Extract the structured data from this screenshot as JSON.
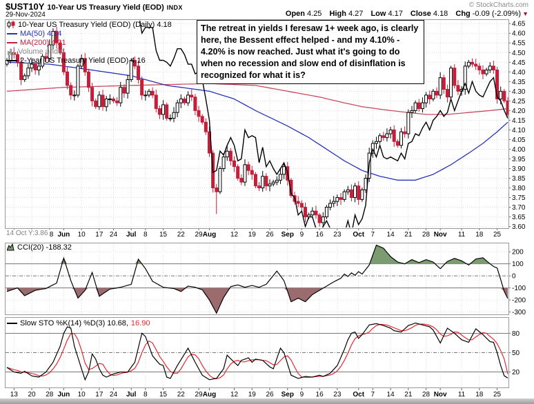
{
  "header": {
    "symbol": "$UST10Y",
    "title": "10-Year US Treasury Yield (EOD)",
    "exchange": "INDX",
    "date": "29-Nov-2024",
    "copyright": "© StockCharts.com",
    "quote": {
      "open_label": "Open",
      "open": "4.25",
      "high_label": "High",
      "high": "4.27",
      "low_label": "Low",
      "low": "4.17",
      "close_label": "Close",
      "close": "4.18",
      "chg_label": "Chg",
      "chg": "-0.09 (-2.09%)",
      "arrow": "▼"
    }
  },
  "legend_main": {
    "price": "10-Year US Treasury Yield (EOD) (Daily) 4.18",
    "ma50": "MA(50) 4.14",
    "ma200": "MA(200) 4.21",
    "volume": "Volume undef",
    "overlay_2y": "2-Year US Treasury Yield (EOD) 4.16"
  },
  "legend_cci": "CCI(20) -188.32",
  "legend_sto": {
    "k": "Slow STO %K(14) %D(3) 10.68,",
    "d": "16.90"
  },
  "inspector": "14 Oct Y:3.86",
  "annotation": "The retreat in yields I feresaw 1+ week ago, is clearly here, the Bessent effect helped - and my 4.10% - 4.20% is now reached. Just what it's going to do when no recession and slow end of disinflation is recognized for what it is?",
  "colors": {
    "candle_down": "#c41e3a",
    "candle_up_fill": "#ffffff",
    "candle_up_stroke": "#000000",
    "ma50": "#2533b8",
    "ma200": "#c84a5e",
    "line_2y": "#000000",
    "cci_fill_pos": "#7d9b70",
    "cci_fill_neg": "#9b6b6e",
    "cci_line": "#000000",
    "sto_k": "#000000",
    "sto_d": "#e8252f",
    "grid": "#dcdcdc",
    "ref_line": "#777777",
    "panel_border": "#999999",
    "axis_text": "#000000",
    "chg_arrow": "#9b1c31"
  },
  "chart_data": [
    {
      "type": "candlestick",
      "title": "10-Year US Treasury Yield (EOD) (Daily)",
      "last": 4.18,
      "ylim": [
        3.6,
        4.65
      ],
      "ytick_step": 0.05,
      "yticks": [
        "4.65",
        "4.60",
        "4.55",
        "4.50",
        "4.45",
        "4.40",
        "4.35",
        "4.30",
        "4.25",
        "4.20",
        "4.15",
        "4.10",
        "4.05",
        "4.00",
        "3.95",
        "3.90",
        "3.85",
        "3.80",
        "3.75",
        "3.70",
        "3.65",
        "3.60"
      ],
      "xticks": [
        [
          2,
          "13"
        ],
        [
          7,
          "20"
        ],
        [
          12,
          "28"
        ],
        [
          16,
          "Jun"
        ],
        [
          21,
          "10"
        ],
        [
          26,
          "17"
        ],
        [
          30,
          "24"
        ],
        [
          35,
          "Jul"
        ],
        [
          39,
          "8"
        ],
        [
          44,
          "15"
        ],
        [
          49,
          "22"
        ],
        [
          54,
          "29"
        ],
        [
          57,
          "Aug"
        ],
        [
          64,
          "12"
        ],
        [
          69,
          "19"
        ],
        [
          74,
          "26"
        ],
        [
          79,
          "Sep"
        ],
        [
          83,
          "9"
        ],
        [
          88,
          "16"
        ],
        [
          93,
          "23"
        ],
        [
          99,
          "Oct"
        ],
        [
          103,
          "7"
        ],
        [
          108,
          "14"
        ],
        [
          113,
          "21"
        ],
        [
          118,
          "28"
        ],
        [
          122,
          "Nov"
        ],
        [
          128,
          "11"
        ],
        [
          133,
          "18"
        ],
        [
          138,
          "25"
        ]
      ],
      "closes": [
        4.46,
        4.5,
        4.49,
        4.45,
        4.36,
        4.38,
        4.42,
        4.44,
        4.41,
        4.43,
        4.48,
        4.47,
        4.54,
        4.61,
        4.55,
        4.5,
        4.4,
        4.33,
        4.28,
        4.28,
        4.43,
        4.47,
        4.4,
        4.32,
        4.25,
        4.22,
        4.28,
        4.22,
        4.26,
        4.26,
        4.25,
        4.24,
        4.32,
        4.29,
        4.36,
        4.46,
        4.43,
        4.36,
        4.28,
        4.28,
        4.3,
        4.28,
        4.21,
        4.18,
        4.23,
        4.16,
        4.16,
        4.19,
        4.24,
        4.26,
        4.24,
        4.28,
        4.27,
        4.2,
        4.17,
        4.14,
        4.09,
        3.98,
        3.8,
        3.78,
        3.9,
        3.96,
        3.99,
        3.94,
        3.91,
        3.85,
        3.83,
        3.92,
        3.89,
        3.87,
        3.81,
        3.8,
        3.86,
        3.81,
        3.82,
        3.83,
        3.84,
        3.87,
        3.91,
        3.84,
        3.76,
        3.73,
        3.72,
        3.7,
        3.65,
        3.66,
        3.68,
        3.66,
        3.62,
        3.65,
        3.7,
        3.72,
        3.73,
        3.75,
        3.74,
        3.78,
        3.79,
        3.75,
        3.81,
        3.74,
        3.79,
        3.85,
        3.98,
        4.03,
        4.04,
        4.07,
        4.06,
        4.08,
        4.1,
        4.04,
        4.02,
        4.09,
        4.08,
        4.19,
        4.2,
        4.24,
        4.21,
        4.24,
        4.28,
        4.26,
        4.3,
        4.28,
        4.37,
        4.31,
        4.27,
        4.42,
        4.33,
        4.3,
        4.31,
        4.43,
        4.45,
        4.44,
        4.43,
        4.41,
        4.39,
        4.41,
        4.43,
        4.41,
        4.26,
        4.3,
        4.25,
        4.18
      ],
      "wick_overrides": {
        "59": [
          3.82,
          3.665
        ],
        "88": [
          3.67,
          3.6
        ],
        "141": [
          4.27,
          4.17
        ]
      },
      "overlays": [
        {
          "name": "MA(50)",
          "last": 4.14,
          "keypoints": [
            [
              0,
              4.45
            ],
            [
              12,
              4.44
            ],
            [
              20,
              4.42
            ],
            [
              35,
              4.38
            ],
            [
              45,
              4.33
            ],
            [
              57,
              4.3
            ],
            [
              64,
              4.26
            ],
            [
              70,
              4.2
            ],
            [
              79,
              4.12
            ],
            [
              85,
              4.06
            ],
            [
              90,
              4.0
            ],
            [
              95,
              3.94
            ],
            [
              100,
              3.89
            ],
            [
              105,
              3.86
            ],
            [
              110,
              3.84
            ],
            [
              115,
              3.84
            ],
            [
              120,
              3.87
            ],
            [
              125,
              3.92
            ],
            [
              130,
              3.98
            ],
            [
              134,
              4.03
            ],
            [
              138,
              4.09
            ],
            [
              141,
              4.14
            ]
          ]
        },
        {
          "name": "MA(200)",
          "last": 4.21,
          "keypoints": [
            [
              0,
              4.3
            ],
            [
              16,
              4.32
            ],
            [
              35,
              4.33
            ],
            [
              57,
              4.34
            ],
            [
              70,
              4.33
            ],
            [
              79,
              4.3
            ],
            [
              88,
              4.27
            ],
            [
              95,
              4.24
            ],
            [
              100,
              4.22
            ],
            [
              108,
              4.2
            ],
            [
              113,
              4.19
            ],
            [
              118,
              4.18
            ],
            [
              124,
              4.18
            ],
            [
              130,
              4.19
            ],
            [
              136,
              4.2
            ],
            [
              141,
              4.21
            ]
          ]
        },
        {
          "name": "2-Year US Treasury Yield (EOD)",
          "last": 4.16,
          "values": [
            4.81,
            4.87,
            4.86,
            4.82,
            4.73,
            4.79,
            4.83,
            4.84,
            4.83,
            4.87,
            4.93,
            4.95,
            4.94,
            4.98,
            4.93,
            4.88,
            4.82,
            4.78,
            4.73,
            4.73,
            4.89,
            4.88,
            4.84,
            4.76,
            4.7,
            4.71,
            4.77,
            4.72,
            4.74,
            4.74,
            4.74,
            4.74,
            4.75,
            4.72,
            4.76,
            4.78,
            4.74,
            4.71,
            4.6,
            4.63,
            4.63,
            4.63,
            4.51,
            4.46,
            4.46,
            4.45,
            4.43,
            4.47,
            4.52,
            4.52,
            4.49,
            4.44,
            4.44,
            4.39,
            4.4,
            4.36,
            4.26,
            4.15,
            3.88,
            3.89,
            3.99,
            3.97,
            4.02,
            4.06,
            4.02,
            3.94,
            3.95,
            4.1,
            4.06,
            4.07,
            4.06,
            3.93,
            4.01,
            3.91,
            3.94,
            3.9,
            3.87,
            3.9,
            3.93,
            3.88,
            3.77,
            3.75,
            3.66,
            3.68,
            3.6,
            3.65,
            3.65,
            3.59,
            3.56,
            3.6,
            3.63,
            3.59,
            3.57,
            3.58,
            3.54,
            3.56,
            3.63,
            3.56,
            3.66,
            3.61,
            3.64,
            3.71,
            3.93,
            4.0,
            3.96,
            4.02,
            3.96,
            3.95,
            3.96,
            3.95,
            3.94,
            3.98,
            3.95,
            4.03,
            4.04,
            4.08,
            4.07,
            4.11,
            4.14,
            4.1,
            4.15,
            4.17,
            4.2,
            4.17,
            4.19,
            4.26,
            4.2,
            4.25,
            4.3,
            4.34,
            4.29,
            4.35,
            4.3,
            4.28,
            4.27,
            4.31,
            4.35,
            4.37,
            4.27,
            4.25,
            4.2,
            4.16
          ]
        }
      ]
    },
    {
      "type": "area",
      "title": "CCI(20)",
      "last": -188.32,
      "ylim": [
        -320,
        270
      ],
      "yticks": [
        "200",
        "100",
        "0",
        "-100",
        "-200",
        "-300"
      ],
      "ref_lines": {
        "upper": 100,
        "mid": 0,
        "lower": -100
      },
      "keypoints": [
        [
          0,
          -130
        ],
        [
          3,
          -100
        ],
        [
          5,
          -165
        ],
        [
          8,
          -120
        ],
        [
          11,
          -105
        ],
        [
          14,
          -60
        ],
        [
          16,
          148
        ],
        [
          18,
          -40
        ],
        [
          20,
          -185
        ],
        [
          22,
          -120
        ],
        [
          24,
          28
        ],
        [
          26,
          -170
        ],
        [
          29,
          -110
        ],
        [
          32,
          -95
        ],
        [
          35,
          -70
        ],
        [
          37,
          138
        ],
        [
          39,
          60
        ],
        [
          41,
          -45
        ],
        [
          44,
          -95
        ],
        [
          47,
          -105
        ],
        [
          49,
          -130
        ],
        [
          51,
          -85
        ],
        [
          53,
          -95
        ],
        [
          55,
          -115
        ],
        [
          57,
          -200
        ],
        [
          59,
          -310
        ],
        [
          61,
          -180
        ],
        [
          63,
          -90
        ],
        [
          65,
          -75
        ],
        [
          67,
          -95
        ],
        [
          69,
          -80
        ],
        [
          71,
          -95
        ],
        [
          73,
          -70
        ],
        [
          76,
          40
        ],
        [
          78,
          -40
        ],
        [
          80,
          -215
        ],
        [
          82,
          -185
        ],
        [
          84,
          -215
        ],
        [
          86,
          -155
        ],
        [
          88,
          -120
        ],
        [
          90,
          -85
        ],
        [
          92,
          -50
        ],
        [
          94,
          -20
        ],
        [
          95,
          15
        ],
        [
          96,
          -5
        ],
        [
          97,
          25
        ],
        [
          98,
          5
        ],
        [
          99,
          35
        ],
        [
          100,
          15
        ],
        [
          102,
          90
        ],
        [
          104,
          255
        ],
        [
          106,
          230
        ],
        [
          108,
          160
        ],
        [
          110,
          115
        ],
        [
          112,
          100
        ],
        [
          114,
          135
        ],
        [
          116,
          110
        ],
        [
          118,
          135
        ],
        [
          120,
          115
        ],
        [
          122,
          60
        ],
        [
          124,
          120
        ],
        [
          126,
          145
        ],
        [
          128,
          125
        ],
        [
          130,
          90
        ],
        [
          132,
          140
        ],
        [
          134,
          150
        ],
        [
          136,
          100
        ],
        [
          137,
          78
        ],
        [
          138,
          65
        ],
        [
          139,
          -30
        ],
        [
          140,
          -130
        ],
        [
          141,
          -188.32
        ]
      ]
    },
    {
      "type": "line",
      "title": "Slow STO %K(14) %D(3)",
      "k_last": 10.68,
      "d_last": 16.9,
      "ylim": [
        -4,
        104
      ],
      "yticks": [
        "80",
        "50",
        "20"
      ],
      "ref_lines": {
        "upper": 80,
        "mid": 50,
        "lower": 20
      },
      "k_keypoints": [
        [
          0,
          27
        ],
        [
          2,
          20
        ],
        [
          4,
          18
        ],
        [
          5,
          21
        ],
        [
          7,
          14
        ],
        [
          9,
          12
        ],
        [
          11,
          20
        ],
        [
          13,
          35
        ],
        [
          15,
          60
        ],
        [
          16,
          80
        ],
        [
          17,
          90
        ],
        [
          18,
          88
        ],
        [
          19,
          60
        ],
        [
          21,
          25
        ],
        [
          22,
          8
        ],
        [
          23,
          20
        ],
        [
          24,
          48
        ],
        [
          25,
          40
        ],
        [
          26,
          25
        ],
        [
          27,
          15
        ],
        [
          28,
          12
        ],
        [
          30,
          17
        ],
        [
          32,
          20
        ],
        [
          34,
          20
        ],
        [
          36,
          35
        ],
        [
          38,
          80
        ],
        [
          39,
          75
        ],
        [
          41,
          45
        ],
        [
          43,
          32
        ],
        [
          44,
          30
        ],
        [
          45,
          12
        ],
        [
          46,
          10
        ],
        [
          48,
          30
        ],
        [
          51,
          57
        ],
        [
          53,
          35
        ],
        [
          55,
          15
        ],
        [
          57,
          8
        ],
        [
          59,
          10
        ],
        [
          61,
          25
        ],
        [
          62,
          46
        ],
        [
          64,
          35
        ],
        [
          65,
          30
        ],
        [
          66,
          38
        ],
        [
          68,
          42
        ],
        [
          69,
          35
        ],
        [
          70,
          40
        ],
        [
          72,
          38
        ],
        [
          74,
          28
        ],
        [
          75,
          25
        ],
        [
          77,
          57
        ],
        [
          78,
          50
        ],
        [
          80,
          15
        ],
        [
          82,
          10
        ],
        [
          84,
          13
        ],
        [
          86,
          12
        ],
        [
          88,
          15
        ],
        [
          89,
          13
        ],
        [
          91,
          18
        ],
        [
          93,
          30
        ],
        [
          95,
          55
        ],
        [
          96,
          70
        ],
        [
          97,
          80
        ],
        [
          98,
          82
        ],
        [
          99,
          72
        ],
        [
          100,
          78
        ],
        [
          102,
          93
        ],
        [
          104,
          95
        ],
        [
          106,
          92
        ],
        [
          108,
          88
        ],
        [
          109,
          84
        ],
        [
          111,
          82
        ],
        [
          113,
          92
        ],
        [
          115,
          96
        ],
        [
          117,
          93
        ],
        [
          119,
          90
        ],
        [
          120,
          85
        ],
        [
          122,
          65
        ],
        [
          124,
          88
        ],
        [
          126,
          80
        ],
        [
          128,
          70
        ],
        [
          130,
          66
        ],
        [
          132,
          87
        ],
        [
          134,
          78
        ],
        [
          136,
          67
        ],
        [
          137,
          66
        ],
        [
          138,
          50
        ],
        [
          139,
          30
        ],
        [
          140,
          14
        ],
        [
          141,
          10.68
        ]
      ]
    }
  ]
}
